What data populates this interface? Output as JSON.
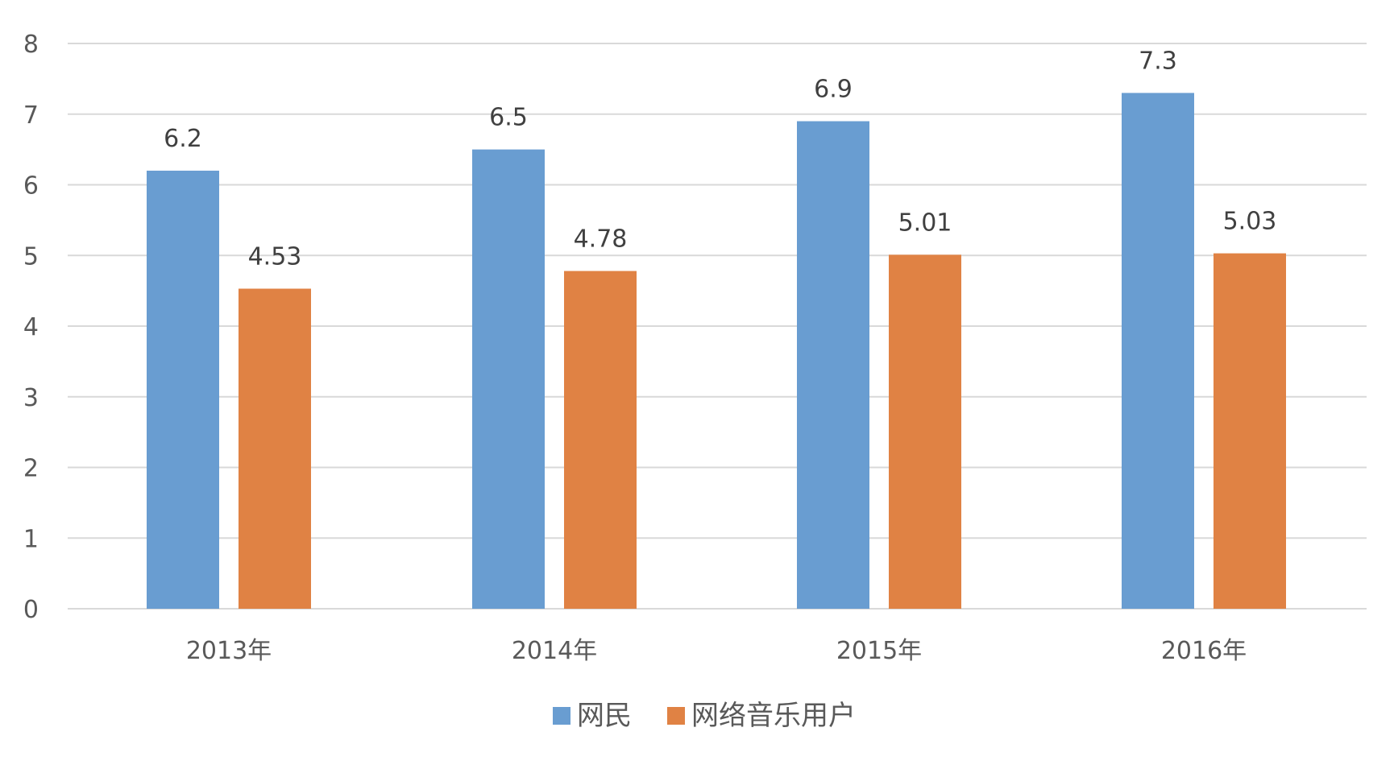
{
  "chart_data": {
    "type": "bar",
    "categories": [
      "2013年",
      "2014年",
      "2015年",
      "2016年"
    ],
    "series": [
      {
        "name": "网民",
        "values": [
          6.2,
          6.5,
          6.9,
          7.3
        ],
        "color": "#699dd1"
      },
      {
        "name": "网络音乐用户",
        "values": [
          4.53,
          4.78,
          5.01,
          5.03
        ],
        "color": "#e08244"
      }
    ],
    "data_labels": [
      [
        "6.2",
        "6.5",
        "6.9",
        "7.3"
      ],
      [
        "4.53",
        "4.78",
        "5.01",
        "5.03"
      ]
    ],
    "yticks": [
      "0",
      "1",
      "2",
      "3",
      "4",
      "5",
      "6",
      "7",
      "8"
    ],
    "ylim": [
      0,
      8
    ],
    "title": "",
    "xlabel": "",
    "ylabel": "",
    "grid": true,
    "legend_position": "bottom-center"
  }
}
